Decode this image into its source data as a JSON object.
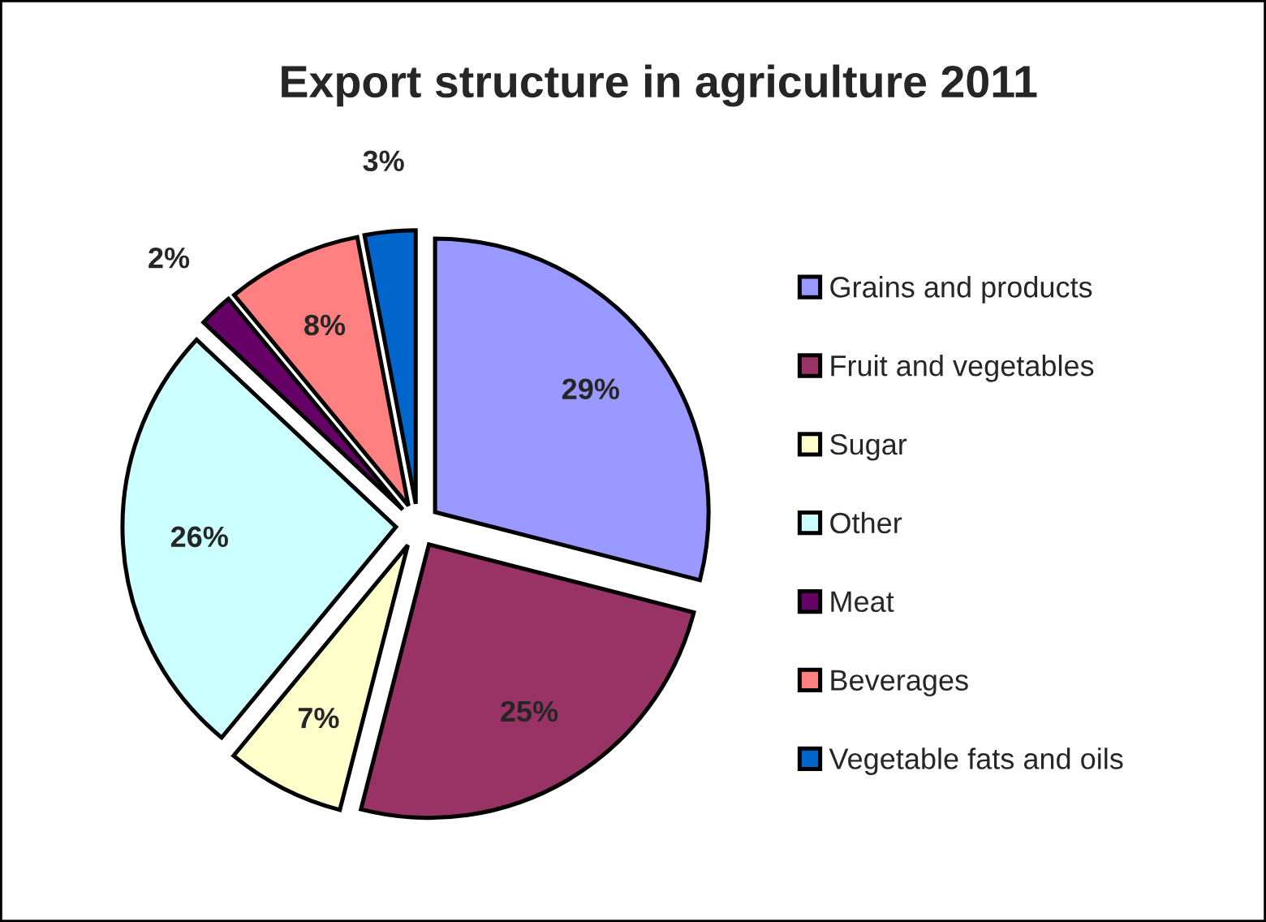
{
  "chart_data": {
    "type": "pie",
    "title": "Export structure in agriculture 2011",
    "categories": [
      "Grains and products",
      "Fruit and vegetables",
      "Sugar",
      "Other",
      "Meat",
      "Beverages",
      "Vegetable fats and oils"
    ],
    "values": [
      29,
      25,
      7,
      26,
      2,
      8,
      3
    ],
    "value_labels": [
      "29%",
      "25%",
      "7%",
      "26%",
      "2%",
      "8%",
      "3%"
    ],
    "colors": [
      "#9999ff",
      "#993366",
      "#ffffcc",
      "#ccffff",
      "#660066",
      "#ff8080",
      "#0066cc"
    ],
    "legend": "right"
  }
}
